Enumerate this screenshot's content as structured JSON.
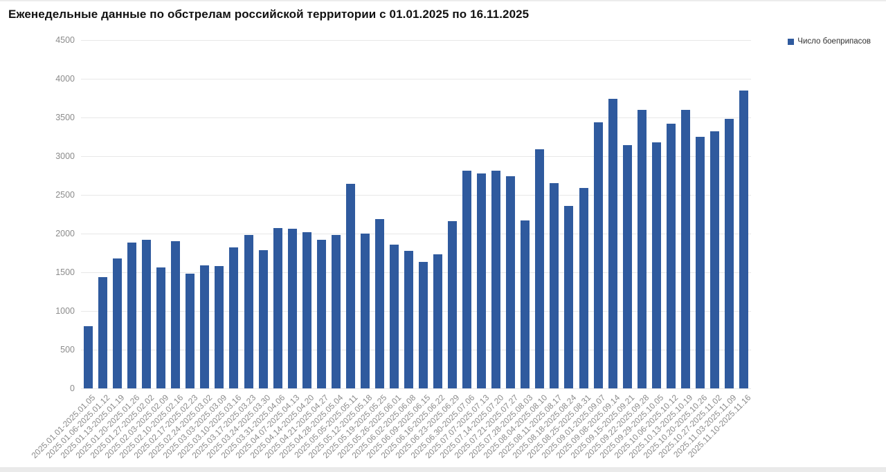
{
  "chart_data": {
    "type": "bar",
    "title": "Еженедельные данные по обстрелам российской территории с 01.01.2025 по 16.11.2025",
    "legend_label": "Число боеприпасов",
    "legend_position": "top-right",
    "bar_color": "#2f5a9e",
    "grid": "horizontal",
    "gridline_color": "#e7e7e7",
    "ylim": [
      0,
      4500
    ],
    "y_ticks": [
      0,
      500,
      1000,
      1500,
      2000,
      2500,
      3000,
      3500,
      4000,
      4500
    ],
    "xlabel": "",
    "ylabel": "",
    "categories": [
      "2025.01.01-2025.01.05",
      "2025.01.06-2025.01.12",
      "2025.01.13-2025.01.19",
      "2025.01.20-2025.01.26",
      "2025.01.27-2025.02.02",
      "2025.02.03-2025.02.09",
      "2025.02.10-2025.02.16",
      "2025.02.17-2025.02.23",
      "2025.02.24-2025.03.02",
      "2025.03.03-2025.03.09",
      "2025.03.10-2025.03.16",
      "2025.03.17-2025.03.23",
      "2025.03.24-2025.03.30",
      "2025.03.31-2025.04.06",
      "2025.04.07-2025.04.13",
      "2025.04.14-2025.04.20",
      "2025.04.21-2025.04.27",
      "2025.04.28-2025.05.04",
      "2025.05.05-2025.05.11",
      "2025.05.12-2025.05.18",
      "2025.05.19-2025.05.25",
      "2025.05.26-2025.06.01",
      "2025.06.02-2025.06.08",
      "2025.06.09-2025.06.15",
      "2025.06.16-2025.06.22",
      "2025.06.23-2025.06.29",
      "2025.06.30-2025.07.06",
      "2025.07.07-2025.07.13",
      "2025.07.14-2025.07.20",
      "2025.07.21-2025.07.27",
      "2025.07.28-2025.08.03",
      "2025.08.04-2025.08.10",
      "2025.08.11-2025.08.17",
      "2025.08.18-2025.08.24",
      "2025.08.25-2025.08.31",
      "2025.09.01-2025.09.07",
      "2025.09.08-2025.09.14",
      "2025.09.15-2025.09.21",
      "2025.09.22-2025.09.28",
      "2025.09.29-2025.10.05",
      "2025.10.06-2025.10.12",
      "2025.10.13-2025.10.19",
      "2025.10.20-2025.10.26",
      "2025.10.27-2025.11.02",
      "2025.11.03-2025.11.09",
      "2025.11.10-2025.11.16"
    ],
    "series": [
      {
        "name": "Число боеприпасов",
        "values": [
          800,
          1440,
          1680,
          1880,
          1920,
          1560,
          1900,
          1480,
          1590,
          1580,
          1820,
          1980,
          1790,
          2070,
          2060,
          2020,
          1920,
          1980,
          2640,
          2000,
          2190,
          1860,
          1780,
          1630,
          1730,
          2160,
          2810,
          2780,
          2810,
          2740,
          2170,
          3090,
          2650,
          2360,
          2590,
          3440,
          3740,
          3140,
          3600,
          3180,
          3420,
          3600,
          3250,
          3320,
          3480,
          3850
        ]
      }
    ]
  }
}
